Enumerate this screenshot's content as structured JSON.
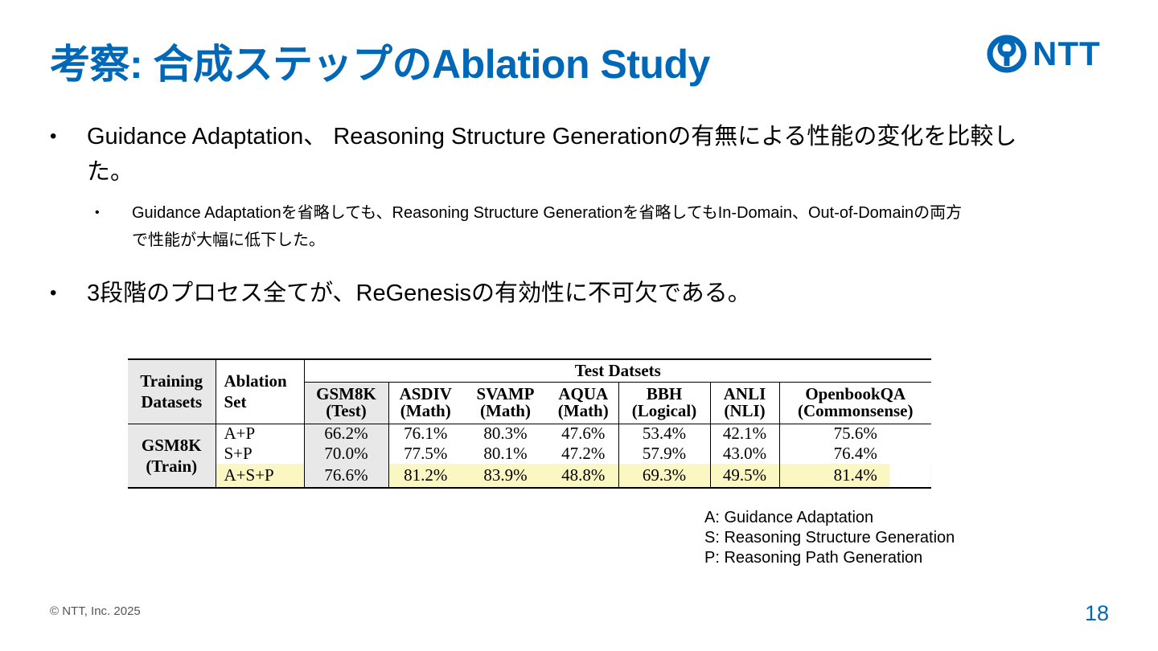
{
  "title": "考察: 合成ステップのAblation Study",
  "logo": {
    "text": "NTT",
    "icon": "ntt-logo-icon",
    "color": "#0068b7"
  },
  "bullets": [
    "Guidance Adaptation、 Reasoning Structure Generationの有無による性能の変化を比較した。",
    "3段階のプロセス全てが、ReGenesisの有効性に不可欠である。"
  ],
  "sub_bullets": [
    "Guidance Adaptationを省略しても、Reasoning Structure Generationを省略してもIn-Domain、Out-of-Domainの両方で性能が大幅に低下した。"
  ],
  "bullet_marker": "•",
  "table": {
    "col_training": "Training Datasets",
    "col_ablation": "Ablation Set",
    "test_header": "Test Datsets",
    "test_columns": [
      {
        "name": "GSM8K",
        "sub": "(Test)"
      },
      {
        "name": "ASDIV",
        "sub": "(Math)"
      },
      {
        "name": "SVAMP",
        "sub": "(Math)"
      },
      {
        "name": "AQUA",
        "sub": "(Math)"
      },
      {
        "name": "BBH",
        "sub": "(Logical)"
      },
      {
        "name": "ANLI",
        "sub": "(NLI)"
      },
      {
        "name": "OpenbookQA",
        "sub": "(Commonsense)"
      }
    ],
    "training_dataset": "GSM8K (Train)",
    "rows": [
      {
        "set": "A+P",
        "values": [
          "66.2%",
          "76.1%",
          "80.3%",
          "47.6%",
          "53.4%",
          "42.1%",
          "75.6%"
        ]
      },
      {
        "set": "S+P",
        "values": [
          "70.0%",
          "77.5%",
          "80.1%",
          "47.2%",
          "57.9%",
          "43.0%",
          "76.4%"
        ]
      },
      {
        "set": "A+S+P",
        "values": [
          "76.6%",
          "81.2%",
          "83.9%",
          "48.8%",
          "69.3%",
          "49.5%",
          "81.4%"
        ]
      }
    ],
    "highlight_color": "#fbf7c2"
  },
  "legend": [
    "A: Guidance Adaptation",
    "S: Reasoning Structure Generation",
    "P: Reasoning Path Generation"
  ],
  "footer": {
    "copyright": "© NTT, Inc.  2025",
    "page": "18"
  }
}
